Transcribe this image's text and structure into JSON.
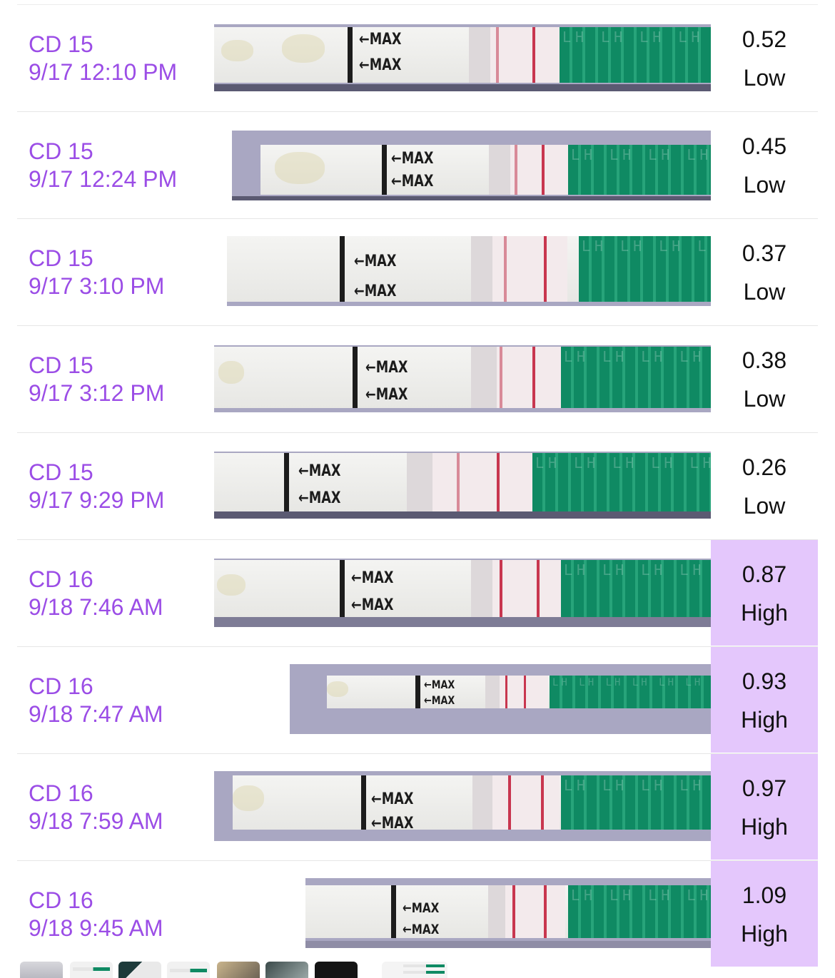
{
  "readings": [
    {
      "cycle_day": "CD 15",
      "datetime": "9/17 12:10 PM",
      "value": "0.52",
      "level": "Low",
      "high": false,
      "max_label_1": "←MAX",
      "max_label_2": "←MAX"
    },
    {
      "cycle_day": "CD 15",
      "datetime": "9/17 12:24 PM",
      "value": "0.45",
      "level": "Low",
      "high": false,
      "max_label_1": "←MAX",
      "max_label_2": "←MAX"
    },
    {
      "cycle_day": "CD 15",
      "datetime": "9/17 3:10 PM",
      "value": "0.37",
      "level": "Low",
      "high": false,
      "max_label_1": "←MAX",
      "max_label_2": "←MAX"
    },
    {
      "cycle_day": "CD 15",
      "datetime": "9/17 3:12 PM",
      "value": "0.38",
      "level": "Low",
      "high": false,
      "max_label_1": "←MAX",
      "max_label_2": "←MAX"
    },
    {
      "cycle_day": "CD 15",
      "datetime": "9/17 9:29 PM",
      "value": "0.26",
      "level": "Low",
      "high": false,
      "max_label_1": "←MAX",
      "max_label_2": "←MAX"
    },
    {
      "cycle_day": "CD 16",
      "datetime": "9/18 7:46 AM",
      "value": "0.87",
      "level": "High",
      "high": true,
      "max_label_1": "←MAX",
      "max_label_2": "←MAX"
    },
    {
      "cycle_day": "CD 16",
      "datetime": "9/18 7:47 AM",
      "value": "0.93",
      "level": "High",
      "high": true,
      "max_label_1": "←MAX",
      "max_label_2": "←MAX"
    },
    {
      "cycle_day": "CD 16",
      "datetime": "9/18 7:59 AM",
      "value": "0.97",
      "level": "High",
      "high": true,
      "max_label_1": "←MAX",
      "max_label_2": "←MAX"
    },
    {
      "cycle_day": "CD 16",
      "datetime": "9/18 9:45 AM",
      "value": "1.09",
      "level": "High",
      "high": true,
      "max_label_1": "←MAX",
      "max_label_2": "←MAX"
    }
  ],
  "strip_handle_text": "LH LH LH LH LH LH",
  "colors": {
    "label": "#9b4de6",
    "high_background": "#e4c7fc",
    "value_text": "#111111",
    "strip_green": "#0f8a63",
    "test_line": "#c8364f"
  }
}
